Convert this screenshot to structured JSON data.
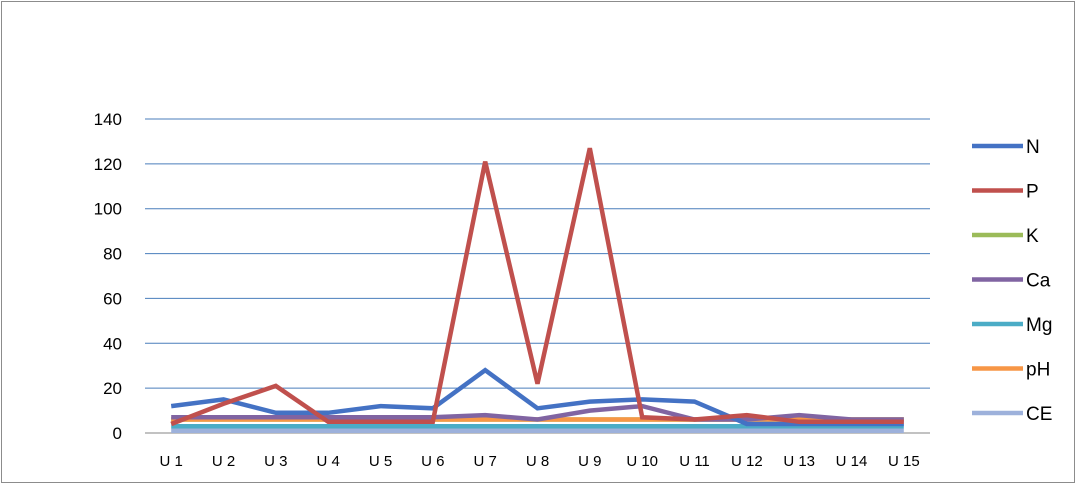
{
  "chart_data": {
    "type": "line",
    "title": "",
    "xlabel": "",
    "ylabel": "",
    "ylim": [
      0,
      140
    ],
    "yticks": [
      0,
      20,
      40,
      60,
      80,
      100,
      120,
      140
    ],
    "grid": true,
    "legend_position": "right",
    "categories": [
      "U 1",
      "U 2",
      "U 3",
      "U 4",
      "U 5",
      "U 6",
      "U 7",
      "U 8",
      "U 9",
      "U 10",
      "U 11",
      "U 12",
      "U 13",
      "U 14",
      "U 15"
    ],
    "series": [
      {
        "name": "N",
        "color": "#4472C4",
        "values": [
          12,
          15,
          9,
          9,
          12,
          11,
          28,
          11,
          14,
          15,
          14,
          4,
          4,
          4,
          4
        ]
      },
      {
        "name": "P",
        "color": "#C0504D",
        "values": [
          4,
          13,
          21,
          5,
          5,
          5,
          121,
          22,
          127,
          7,
          6,
          8,
          5,
          5,
          5
        ]
      },
      {
        "name": "K",
        "color": "#9BBB59",
        "values": [
          6,
          6,
          6,
          6,
          6,
          6,
          6,
          6,
          6,
          6,
          6,
          6,
          6,
          6,
          6
        ]
      },
      {
        "name": "Ca",
        "color": "#8064A2",
        "values": [
          7,
          7,
          7,
          7,
          7,
          7,
          8,
          6,
          10,
          12,
          6,
          6,
          8,
          6,
          6
        ]
      },
      {
        "name": "Mg",
        "color": "#4BACC6",
        "values": [
          3,
          3,
          3,
          3,
          3,
          3,
          3,
          3,
          3,
          3,
          3,
          3,
          3,
          3,
          3
        ]
      },
      {
        "name": "pH",
        "color": "#F79646",
        "values": [
          6,
          6,
          6,
          6,
          6,
          6,
          6,
          6,
          6,
          6,
          6,
          6,
          6,
          6,
          6
        ]
      },
      {
        "name": "CE",
        "color": "#9DB1DB",
        "values": [
          1,
          1,
          1,
          1,
          1,
          1,
          1,
          1,
          1,
          1,
          1,
          1,
          1,
          1,
          1
        ]
      }
    ]
  }
}
